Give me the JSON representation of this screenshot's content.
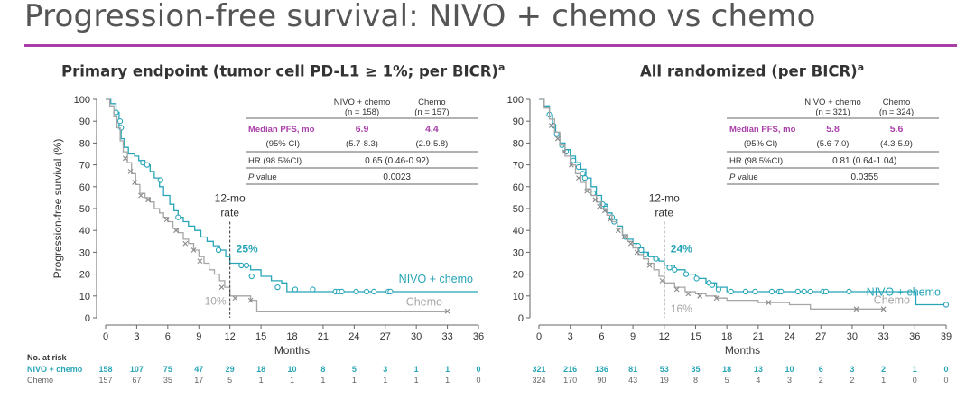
{
  "title": "Progression-free survival: NIVO + chemo vs chemo",
  "colors": {
    "nivo": "#27a5b7",
    "chemo": "#a6a6a6",
    "accent": "#a83ea8",
    "text": "#333333"
  },
  "chart_data": [
    {
      "type": "line",
      "subtitle": "Primary endpoint (tumor cell PD-L1 ≥ 1%; per BICR)",
      "subtitle_sup": "a",
      "ylabel": "Progression-free survival (%)",
      "xlabel": "Months",
      "xlim": [
        0,
        36
      ],
      "ylim": [
        0,
        100
      ],
      "xticks": [
        0,
        3,
        6,
        9,
        12,
        15,
        18,
        21,
        24,
        27,
        30,
        33,
        36
      ],
      "yticks": [
        0,
        10,
        20,
        30,
        40,
        50,
        60,
        70,
        80,
        90,
        100
      ],
      "table": {
        "col1": [
          "NIVO + chemo",
          "(n = 158)"
        ],
        "col2": [
          "Chemo",
          "(n = 157)"
        ],
        "median_label": "Median PFS, mo",
        "median": [
          "6.9",
          "4.4"
        ],
        "ci_label": "(95% CI)",
        "ci": [
          "(5.7-8.3)",
          "(2.9-5.8)"
        ],
        "hr_label": "HR (98.5%CI)",
        "hr": "0.65 (0.46-0.92)",
        "p_label_italic": "P",
        "p_label_rest": " value",
        "p": "0.0023"
      },
      "rate_label": [
        "12-mo",
        "rate"
      ],
      "rate_nivo": "25%",
      "rate_chemo": "10%",
      "series": [
        {
          "name": "NIVO + chemo",
          "label": "NIVO + chemo",
          "x": [
            0,
            0.5,
            1,
            1.3,
            1.5,
            1.8,
            2.2,
            2.8,
            3.2,
            3.8,
            4.3,
            4.7,
            5.2,
            5.6,
            6.2,
            6.6,
            7.0,
            7.5,
            8.0,
            8.6,
            9.2,
            9.8,
            10.4,
            11,
            11.6,
            12,
            13,
            14,
            15,
            16,
            17,
            17.5,
            36
          ],
          "y": [
            100,
            98,
            94,
            88,
            82,
            78,
            75,
            74,
            72,
            70,
            67,
            64,
            60,
            56,
            52,
            49,
            46,
            44,
            42,
            40,
            37,
            35,
            33,
            31,
            28,
            25,
            24,
            22,
            19,
            17,
            16,
            12,
            12
          ],
          "censor": [
            [
              1.0,
              94
            ],
            [
              1.4,
              90
            ],
            [
              1.5,
              87
            ],
            [
              3.6,
              71
            ],
            [
              4.0,
              70
            ],
            [
              5.3,
              63
            ],
            [
              7.0,
              46
            ],
            [
              10.9,
              31
            ],
            [
              13.1,
              24
            ],
            [
              13.6,
              24
            ],
            [
              14.1,
              19
            ],
            [
              16.6,
              14
            ],
            [
              18.3,
              13
            ],
            [
              20.0,
              13
            ],
            [
              22.2,
              12
            ],
            [
              22.5,
              12
            ],
            [
              22.8,
              12
            ],
            [
              24.2,
              12
            ],
            [
              25.2,
              12
            ],
            [
              25.9,
              12
            ],
            [
              27.3,
              12
            ],
            [
              27.5,
              12
            ]
          ]
        },
        {
          "name": "Chemo",
          "label": "Chemo",
          "x": [
            0,
            0.4,
            0.8,
            1.1,
            1.4,
            1.7,
            2.1,
            2.5,
            2.9,
            3.3,
            3.8,
            4.3,
            4.7,
            5.2,
            5.6,
            6.0,
            6.5,
            7.0,
            7.5,
            8.0,
            8.5,
            9.0,
            9.5,
            10.0,
            10.5,
            11.0,
            11.5,
            12.0,
            14.0,
            14.6,
            33
          ],
          "y": [
            100,
            97,
            92,
            87,
            81,
            76,
            71,
            66,
            61,
            57,
            55,
            53,
            50,
            48,
            46,
            44,
            41,
            39,
            36,
            34,
            31,
            28,
            25,
            22,
            20,
            17,
            14,
            10,
            8,
            3,
            3
          ],
          "censor": [
            [
              1.9,
              73
            ],
            [
              2.4,
              67
            ],
            [
              2.8,
              62
            ],
            [
              3.4,
              56
            ],
            [
              4.1,
              54
            ],
            [
              5.9,
              45
            ],
            [
              6.8,
              40
            ],
            [
              7.7,
              34
            ],
            [
              8.5,
              31
            ],
            [
              9.1,
              26
            ],
            [
              11.2,
              14
            ],
            [
              12.5,
              9
            ],
            [
              14.0,
              8
            ],
            [
              33,
              3
            ]
          ]
        }
      ],
      "risk_header": "No. at risk",
      "risk": [
        {
          "name": "NIVO + chemo",
          "values": [
            "158",
            "107",
            "75",
            "47",
            "29",
            "18",
            "10",
            "8",
            "5",
            "3",
            "1",
            "1",
            "0"
          ]
        },
        {
          "name": "Chemo",
          "values": [
            "157",
            "67",
            "35",
            "17",
            "5",
            "1",
            "1",
            "1",
            "1",
            "1",
            "1",
            "1",
            "0"
          ]
        }
      ]
    },
    {
      "type": "line",
      "subtitle": "All randomized (per BICR)",
      "subtitle_sup": "a",
      "ylabel": "",
      "xlabel": "Months",
      "xlim": [
        0,
        39
      ],
      "ylim": [
        0,
        100
      ],
      "xticks": [
        0,
        3,
        6,
        9,
        12,
        15,
        18,
        21,
        24,
        27,
        30,
        33,
        36,
        39
      ],
      "yticks": [
        0,
        10,
        20,
        30,
        40,
        50,
        60,
        70,
        80,
        90,
        100
      ],
      "table": {
        "col1": [
          "NIVO + chemo",
          "(n = 321)"
        ],
        "col2": [
          "Chemo",
          "(n = 324)"
        ],
        "median_label": "Median PFS, mo",
        "median": [
          "5.8",
          "5.6"
        ],
        "ci_label": "(95% CI)",
        "ci": [
          "(5.6-7.0)",
          "(4.3-5.9)"
        ],
        "hr_label": "HR (98.5%CI)",
        "hr": "0.81 (0.64-1.04)",
        "p_label_italic": "P",
        "p_label_rest": " value",
        "p": "0.0355"
      },
      "rate_label": [
        "12-mo",
        "rate"
      ],
      "rate_nivo": "24%",
      "rate_chemo": "16%",
      "series": [
        {
          "name": "NIVO + chemo",
          "label": "NIVO + chemo",
          "x": [
            0,
            0.5,
            1,
            1.3,
            1.6,
            2.0,
            2.5,
            3.0,
            3.5,
            4.0,
            4.5,
            5.0,
            5.5,
            6.0,
            6.5,
            7.0,
            7.5,
            8.0,
            8.5,
            9.0,
            9.5,
            10,
            10.5,
            11,
            11.5,
            12,
            13,
            14,
            15,
            16,
            17,
            18,
            36,
            36.1,
            39
          ],
          "y": [
            100,
            97,
            93,
            88,
            84,
            80,
            77,
            74,
            71,
            68,
            64,
            60,
            56,
            52,
            48,
            45,
            42,
            38,
            36,
            34,
            32,
            30,
            28,
            27,
            26,
            24,
            22,
            20,
            18,
            16,
            14,
            12,
            12,
            6,
            6
          ],
          "censor": [
            [
              1.0,
              93
            ],
            [
              1.4,
              88
            ],
            [
              1.7,
              84
            ],
            [
              2.2,
              79
            ],
            [
              2.6,
              76
            ],
            [
              3.3,
              72
            ],
            [
              3.8,
              69
            ],
            [
              4.2,
              66
            ],
            [
              4.4,
              64
            ],
            [
              5.2,
              57
            ],
            [
              6.1,
              52
            ],
            [
              6.4,
              50
            ],
            [
              7.0,
              46
            ],
            [
              7.2,
              44
            ],
            [
              8.3,
              37
            ],
            [
              9.5,
              33
            ],
            [
              9.8,
              31
            ],
            [
              10.2,
              29
            ],
            [
              11.2,
              27
            ],
            [
              12.5,
              23
            ],
            [
              13.0,
              22
            ],
            [
              14.1,
              20
            ],
            [
              15.1,
              18
            ],
            [
              16.3,
              16
            ],
            [
              16.6,
              15
            ],
            [
              17.2,
              13
            ],
            [
              18.4,
              12
            ],
            [
              19.8,
              12
            ],
            [
              20.7,
              12
            ],
            [
              22.3,
              12
            ],
            [
              23.0,
              12
            ],
            [
              23.2,
              12
            ],
            [
              24.8,
              12
            ],
            [
              25.4,
              12
            ],
            [
              26.0,
              12
            ],
            [
              27.2,
              12
            ],
            [
              27.5,
              12
            ],
            [
              29.7,
              12
            ],
            [
              39,
              6
            ]
          ]
        },
        {
          "name": "Chemo",
          "label": "Chemo",
          "x": [
            0,
            0.5,
            1,
            1.5,
            2.0,
            2.5,
            3.0,
            3.5,
            4.0,
            4.5,
            5.0,
            5.5,
            6.0,
            6.5,
            7.0,
            7.5,
            8.0,
            8.5,
            9.0,
            9.5,
            10,
            10.5,
            11,
            11.5,
            12,
            13,
            14,
            15,
            16,
            17,
            18,
            21,
            24,
            26,
            33
          ],
          "y": [
            100,
            96,
            91,
            85,
            79,
            74,
            70,
            66,
            62,
            59,
            56,
            53,
            50,
            47,
            44,
            41,
            38,
            35,
            32,
            29,
            27,
            25,
            22,
            19,
            16,
            14,
            12,
            11,
            10,
            9,
            8,
            7,
            6,
            4,
            4
          ],
          "censor": [
            [
              1.2,
              88
            ],
            [
              1.8,
              82
            ],
            [
              2.4,
              76
            ],
            [
              3.1,
              70
            ],
            [
              3.8,
              64
            ],
            [
              4.6,
              58
            ],
            [
              5.4,
              54
            ],
            [
              5.8,
              51
            ],
            [
              6.3,
              49
            ],
            [
              6.8,
              45
            ],
            [
              7.6,
              40
            ],
            [
              8.2,
              37
            ],
            [
              8.8,
              34
            ],
            [
              9.4,
              30
            ],
            [
              10.6,
              24
            ],
            [
              11.8,
              17
            ],
            [
              13.2,
              13
            ],
            [
              14.3,
              11
            ],
            [
              15.4,
              10
            ],
            [
              17.0,
              9
            ],
            [
              22.0,
              7
            ],
            [
              30.4,
              4
            ],
            [
              33,
              4
            ]
          ]
        }
      ],
      "risk_header": "",
      "risk": [
        {
          "name": "NIVO + chemo",
          "values": [
            "321",
            "216",
            "136",
            "81",
            "53",
            "35",
            "18",
            "13",
            "10",
            "6",
            "3",
            "2",
            "1",
            "0"
          ]
        },
        {
          "name": "Chemo",
          "values": [
            "324",
            "170",
            "90",
            "43",
            "19",
            "8",
            "5",
            "4",
            "3",
            "2",
            "2",
            "1",
            "0",
            "0"
          ]
        }
      ]
    }
  ]
}
